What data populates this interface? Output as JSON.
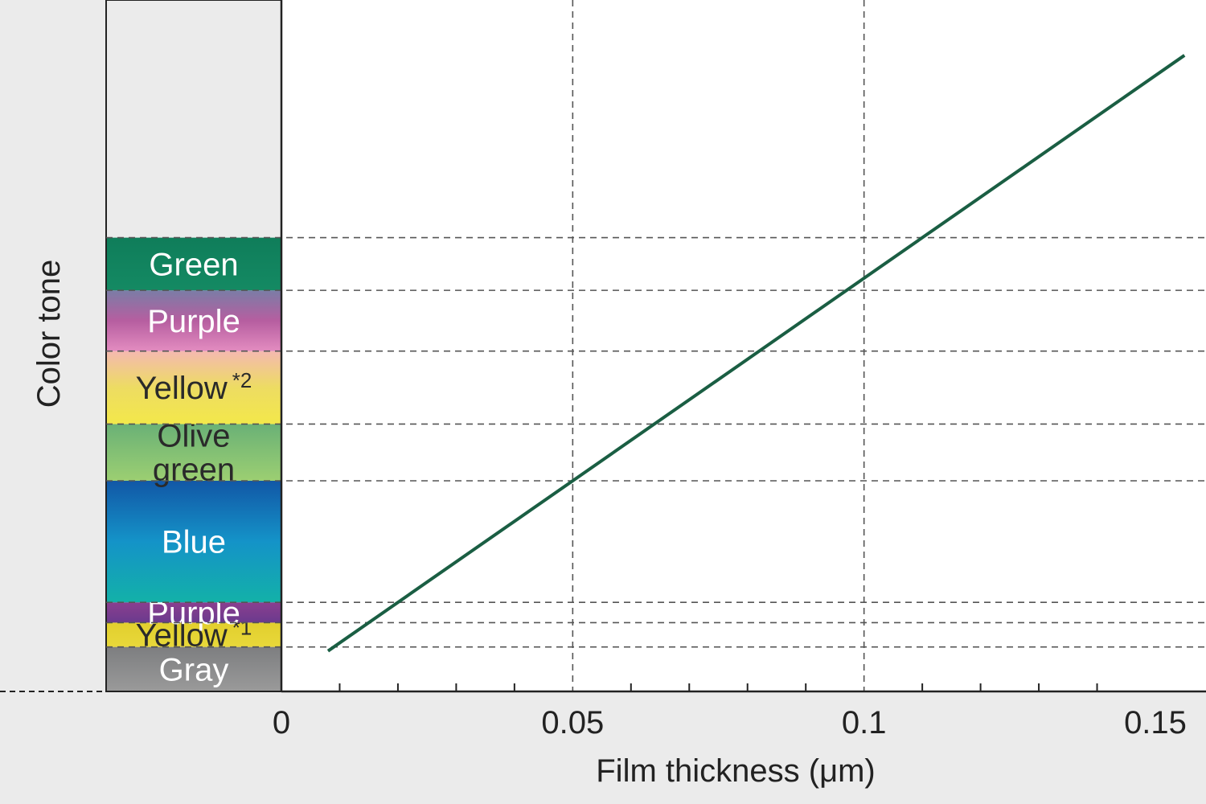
{
  "chart_data": {
    "type": "line",
    "xlabel": "Film thickness (μm)",
    "ylabel": "Color tone",
    "xlim": [
      0,
      0.155
    ],
    "x_ticks": [
      "0",
      "0.05",
      "0.1",
      "0.15"
    ],
    "x_tick_values": [
      0,
      0.05,
      0.1,
      0.15
    ],
    "grid": true,
    "color_bands": [
      {
        "label": "Gray",
        "sup": "",
        "start_thickness": 0,
        "end_thickness": 0.009,
        "colors": [
          "#9a9a9a",
          "#7d7e80"
        ],
        "text_color": "#ffffff"
      },
      {
        "label": "Yellow",
        "sup": "*1",
        "start_thickness": 0.009,
        "end_thickness": 0.015,
        "colors": [
          "#e8d83a",
          "#e2cf2e"
        ],
        "text_color": "#2a2a2a"
      },
      {
        "label": "Purple",
        "sup": "",
        "start_thickness": 0.015,
        "end_thickness": 0.02,
        "colors": [
          "#6a3a8e",
          "#8b3f8f"
        ],
        "text_color": "#ffffff"
      },
      {
        "label": "Blue",
        "sup": "",
        "start_thickness": 0.02,
        "end_thickness": 0.05,
        "colors": [
          "#13b1a8",
          "#1493c8",
          "#1257a6"
        ],
        "text_color": "#ffffff"
      },
      {
        "label": "Olive green",
        "lines": [
          "Olive",
          "green"
        ],
        "sup": "",
        "start_thickness": 0.05,
        "end_thickness": 0.064,
        "colors": [
          "#9ccf72",
          "#6ab176"
        ],
        "text_color": "#2a2a2a"
      },
      {
        "label": "Yellow",
        "sup": "*2",
        "start_thickness": 0.064,
        "end_thickness": 0.082,
        "colors": [
          "#f3e84a",
          "#eddc62",
          "#f4b9b0"
        ],
        "text_color": "#2a2a2a"
      },
      {
        "label": "Purple",
        "sup": "",
        "start_thickness": 0.082,
        "end_thickness": 0.097,
        "colors": [
          "#e38cc0",
          "#b65ea0",
          "#7a7da6"
        ],
        "text_color": "#ffffff"
      },
      {
        "label": "Green",
        "sup": "",
        "start_thickness": 0.097,
        "end_thickness": 0.11,
        "colors": [
          "#148a63",
          "#0f7d5a"
        ],
        "text_color": "#ffffff"
      }
    ],
    "series": [
      {
        "x": [
          0.008,
          0.155
        ],
        "y": [
          0.008,
          0.155
        ],
        "color": "#1a5e43"
      }
    ]
  }
}
